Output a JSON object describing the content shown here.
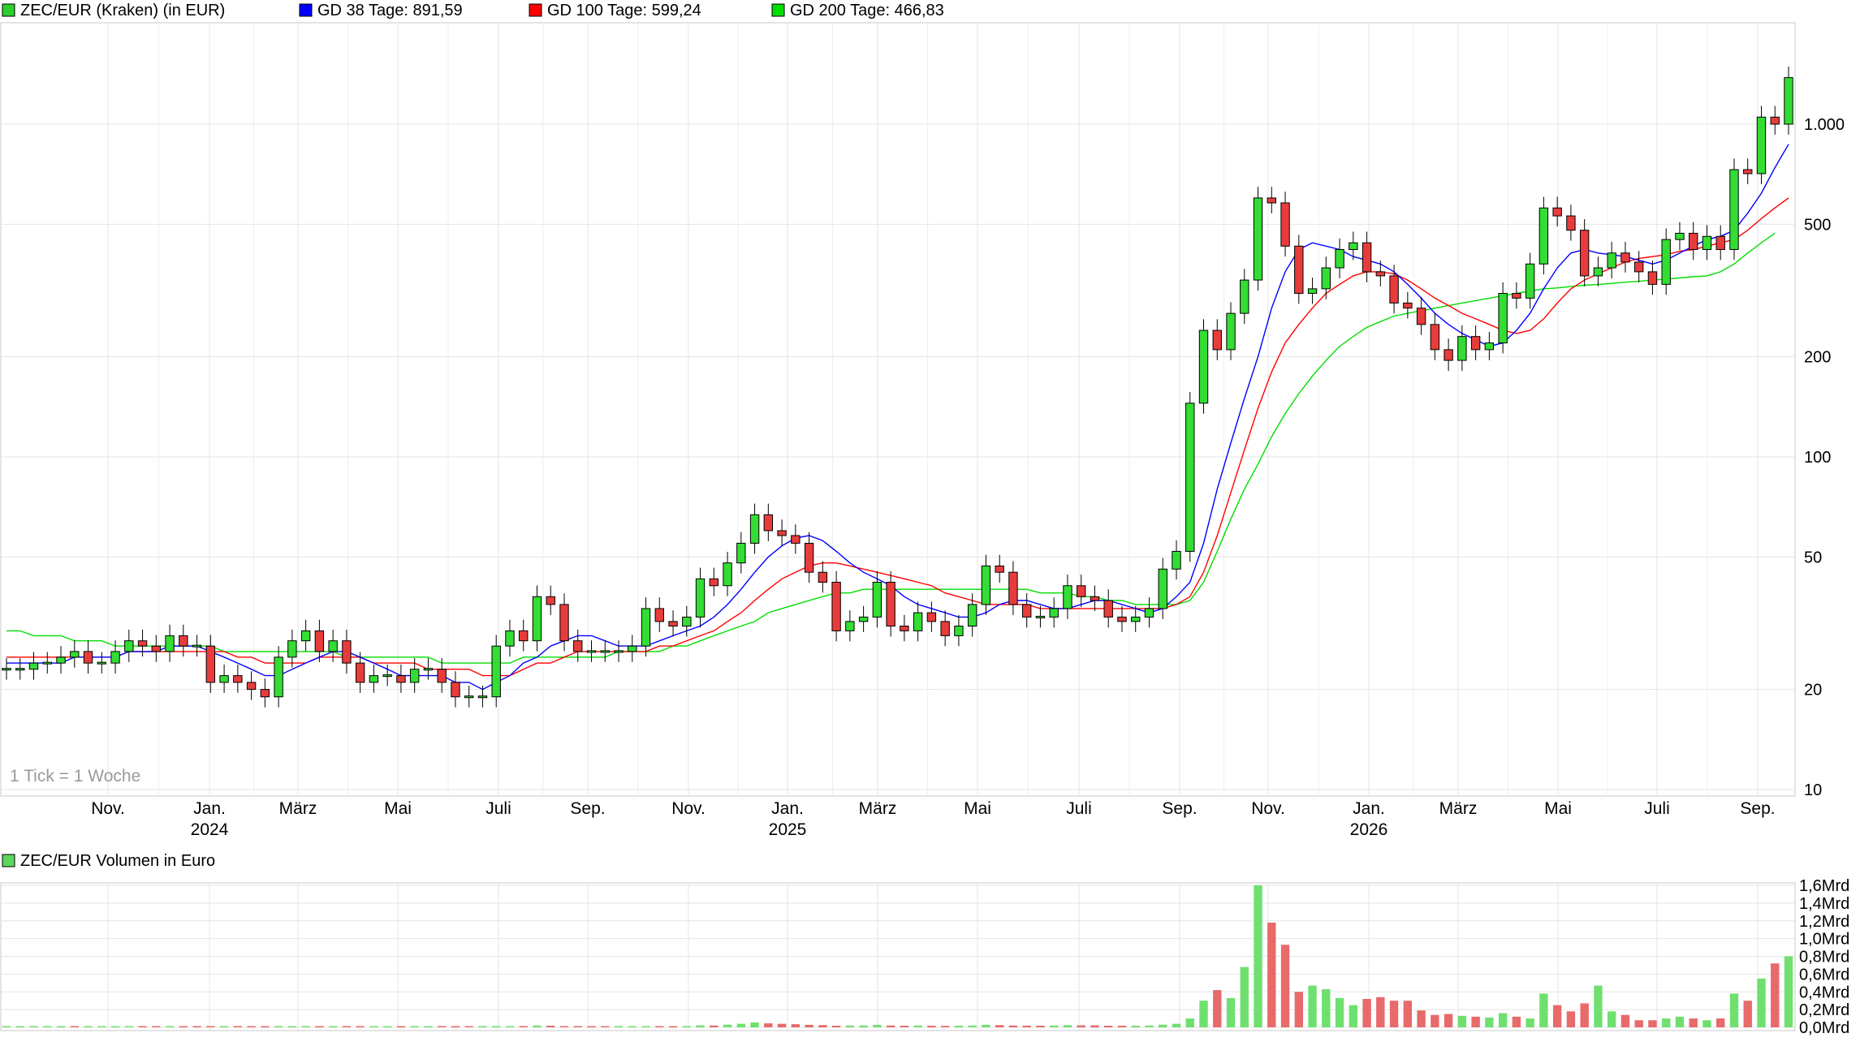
{
  "chart_data": [
    {
      "type": "candlestick",
      "scale": "log",
      "legend": [
        {
          "label": "ZEC/EUR (Kraken) (in EUR)",
          "color": "#2fce2f"
        },
        {
          "label": "GD 38 Tage: 891,59",
          "color": "#0000ff"
        },
        {
          "label": "GD 100 Tage: 599,24",
          "color": "#ff0000"
        },
        {
          "label": "GD 200 Tage: 466,83",
          "color": "#00dd00"
        }
      ],
      "y_ticks": [
        {
          "label": "1.000",
          "value": 1000
        },
        {
          "label": "500",
          "value": 500
        },
        {
          "label": "200",
          "value": 200
        },
        {
          "label": "100",
          "value": 100
        },
        {
          "label": "50",
          "value": 50
        },
        {
          "label": "20",
          "value": 20
        },
        {
          "label": "10",
          "value": 10
        }
      ],
      "x_ticks": [
        {
          "label": "Nov.",
          "year": ""
        },
        {
          "label": "Jan.",
          "year": "2024"
        },
        {
          "label": "März",
          "year": ""
        },
        {
          "label": "Mai",
          "year": ""
        },
        {
          "label": "Juli",
          "year": ""
        },
        {
          "label": "Sep.",
          "year": ""
        },
        {
          "label": "Nov.",
          "year": ""
        },
        {
          "label": "Jan.",
          "year": "2025"
        },
        {
          "label": "März",
          "year": ""
        },
        {
          "label": "Mai",
          "year": ""
        },
        {
          "label": "Juli",
          "year": ""
        },
        {
          "label": "Sep.",
          "year": ""
        },
        {
          "label": "Nov.",
          "year": ""
        },
        {
          "label": "Jan.",
          "year": "2026"
        },
        {
          "label": "März",
          "year": ""
        },
        {
          "label": "Mai",
          "year": ""
        },
        {
          "label": "Juli",
          "year": ""
        },
        {
          "label": "Sep.",
          "year": ""
        }
      ],
      "note": "1 Tick = 1 Woche",
      "ylim": [
        10,
        1800
      ],
      "weekly_close": [
        23,
        23,
        24,
        24,
        25,
        26,
        24,
        24,
        26,
        28,
        27,
        26,
        29,
        27,
        27,
        21,
        22,
        21,
        20,
        19,
        25,
        28,
        30,
        26,
        28,
        24,
        21,
        22,
        22,
        21,
        23,
        23,
        21,
        19,
        19,
        19,
        27,
        30,
        28,
        38,
        36,
        28,
        26,
        26,
        26,
        26,
        27,
        35,
        32,
        31,
        33,
        43,
        41,
        48,
        55,
        67,
        60,
        58,
        55,
        45,
        42,
        30,
        32,
        33,
        42,
        31,
        30,
        34,
        32,
        29,
        31,
        36,
        47,
        45,
        36,
        33,
        33,
        35,
        41,
        38,
        37,
        33,
        32,
        33,
        35,
        46,
        52,
        145,
        240,
        210,
        270,
        340,
        600,
        580,
        430,
        310,
        320,
        370,
        420,
        440,
        360,
        350,
        290,
        280,
        250,
        210,
        195,
        230,
        210,
        220,
        310,
        300,
        380,
        560,
        530,
        480,
        350,
        370,
        410,
        385,
        360,
        330,
        450,
        470,
        420,
        460,
        420,
        730,
        710,
        1050,
        1000,
        1380
      ],
      "weekly_open": [
        23,
        23,
        23,
        24,
        24,
        25,
        26,
        24,
        24,
        26,
        28,
        27,
        26,
        29,
        27,
        27,
        21,
        22,
        21,
        20,
        19,
        25,
        28,
        30,
        26,
        28,
        24,
        21,
        22,
        22,
        21,
        23,
        23,
        21,
        19,
        19,
        19,
        27,
        30,
        28,
        38,
        36,
        28,
        26,
        26,
        26,
        26,
        27,
        35,
        32,
        31,
        33,
        43,
        41,
        48,
        55,
        67,
        60,
        58,
        55,
        45,
        42,
        30,
        32,
        33,
        42,
        31,
        30,
        34,
        32,
        29,
        31,
        36,
        47,
        45,
        36,
        33,
        33,
        35,
        41,
        38,
        37,
        33,
        32,
        33,
        35,
        46,
        52,
        145,
        240,
        210,
        270,
        340,
        600,
        580,
        430,
        310,
        320,
        370,
        420,
        440,
        360,
        350,
        290,
        280,
        250,
        210,
        195,
        230,
        210,
        220,
        310,
        300,
        380,
        560,
        530,
        480,
        350,
        370,
        410,
        385,
        360,
        330,
        450,
        470,
        420,
        460,
        420,
        730,
        710,
        1050,
        1000
      ],
      "ma38": [
        24,
        24,
        24,
        24,
        24,
        25,
        25,
        25,
        25,
        26,
        26,
        26,
        27,
        27,
        27,
        26,
        25,
        24,
        23,
        22,
        22,
        23,
        24,
        25,
        26,
        26,
        25,
        24,
        23,
        22,
        22,
        22,
        22,
        21,
        21,
        20,
        21,
        22,
        24,
        25,
        27,
        28,
        29,
        29,
        28,
        27,
        27,
        27,
        28,
        29,
        30,
        31,
        33,
        36,
        40,
        45,
        50,
        54,
        57,
        58,
        56,
        52,
        48,
        45,
        43,
        41,
        38,
        36,
        35,
        34,
        33,
        33,
        34,
        36,
        37,
        37,
        36,
        35,
        35,
        36,
        37,
        37,
        36,
        35,
        34,
        35,
        38,
        42,
        55,
        80,
        110,
        150,
        200,
        280,
        360,
        420,
        440,
        430,
        420,
        400,
        390,
        380,
        360,
        330,
        300,
        270,
        250,
        235,
        225,
        215,
        220,
        240,
        270,
        320,
        370,
        410,
        420,
        410,
        405,
        400,
        390,
        380,
        390,
        410,
        430,
        450,
        460,
        480,
        540,
        620,
        740,
        870
      ],
      "ma100": [
        25,
        25,
        25,
        25,
        25,
        25,
        25,
        25,
        25,
        26,
        26,
        26,
        26,
        26,
        26,
        26,
        26,
        25,
        25,
        24,
        24,
        24,
        24,
        25,
        25,
        25,
        25,
        24,
        24,
        24,
        24,
        23,
        23,
        23,
        23,
        22,
        22,
        22,
        23,
        24,
        24,
        25,
        26,
        26,
        26,
        26,
        26,
        26,
        27,
        27,
        28,
        29,
        30,
        32,
        34,
        37,
        40,
        43,
        45,
        47,
        48,
        48,
        47,
        46,
        45,
        44,
        43,
        42,
        41,
        39,
        38,
        37,
        36,
        36,
        36,
        36,
        35,
        35,
        35,
        35,
        35,
        35,
        35,
        35,
        35,
        35,
        36,
        38,
        45,
        58,
        78,
        105,
        140,
        180,
        220,
        250,
        280,
        310,
        330,
        350,
        360,
        360,
        355,
        340,
        320,
        300,
        285,
        270,
        260,
        250,
        240,
        235,
        240,
        260,
        290,
        320,
        340,
        355,
        370,
        385,
        395,
        400,
        405,
        415,
        420,
        430,
        440,
        450,
        480,
        520,
        560,
        600
      ],
      "ma200": [
        30,
        30,
        29,
        29,
        29,
        28,
        28,
        28,
        27,
        27,
        27,
        27,
        27,
        27,
        27,
        27,
        26,
        26,
        26,
        26,
        26,
        26,
        26,
        26,
        26,
        25,
        25,
        25,
        25,
        25,
        25,
        25,
        24,
        24,
        24,
        24,
        24,
        24,
        25,
        25,
        25,
        25,
        25,
        25,
        25,
        26,
        26,
        26,
        26,
        27,
        27,
        28,
        29,
        30,
        31,
        32,
        34,
        35,
        36,
        37,
        38,
        39,
        39,
        40,
        40,
        40,
        40,
        40,
        40,
        40,
        40,
        40,
        40,
        40,
        40,
        40,
        39,
        39,
        39,
        38,
        38,
        37,
        37,
        36,
        36,
        36,
        36,
        37,
        42,
        52,
        65,
        80,
        95,
        115,
        135,
        155,
        175,
        195,
        215,
        230,
        245,
        255,
        265,
        270,
        275,
        280,
        285,
        290,
        295,
        300,
        305,
        310,
        315,
        320,
        322,
        325,
        328,
        330,
        332,
        335,
        337,
        340,
        342,
        345,
        348,
        350,
        360,
        380,
        410,
        440,
        470
      ],
      "xlabel": "",
      "ylabel": ""
    },
    {
      "type": "bar",
      "legend": [
        {
          "label": "ZEC/EUR Volumen in Euro",
          "color": "#5cd65c"
        }
      ],
      "unit": "Mrd",
      "y_ticks": [
        {
          "label": "1,6Mrd",
          "value": 1.6
        },
        {
          "label": "1,4Mrd",
          "value": 1.4
        },
        {
          "label": "1,2Mrd",
          "value": 1.2
        },
        {
          "label": "1,0Mrd",
          "value": 1.0
        },
        {
          "label": "0,8Mrd",
          "value": 0.8
        },
        {
          "label": "0,6Mrd",
          "value": 0.6
        },
        {
          "label": "0,4Mrd",
          "value": 0.4
        },
        {
          "label": "0,2Mrd",
          "value": 0.2
        },
        {
          "label": "0,0Mrd",
          "value": 0.0
        }
      ],
      "ylim": [
        0,
        1.6
      ],
      "values": [
        0.005,
        0.005,
        0.005,
        0.006,
        0.006,
        0.008,
        0.007,
        0.006,
        0.007,
        0.012,
        0.01,
        0.009,
        0.012,
        0.01,
        0.009,
        0.01,
        0.008,
        0.008,
        0.007,
        0.007,
        0.01,
        0.012,
        0.011,
        0.009,
        0.01,
        0.009,
        0.008,
        0.008,
        0.007,
        0.007,
        0.008,
        0.008,
        0.007,
        0.007,
        0.007,
        0.007,
        0.012,
        0.014,
        0.012,
        0.02,
        0.018,
        0.012,
        0.01,
        0.009,
        0.009,
        0.009,
        0.009,
        0.013,
        0.013,
        0.012,
        0.014,
        0.022,
        0.02,
        0.03,
        0.04,
        0.055,
        0.045,
        0.04,
        0.035,
        0.028,
        0.025,
        0.018,
        0.02,
        0.02,
        0.028,
        0.02,
        0.018,
        0.02,
        0.018,
        0.016,
        0.018,
        0.02,
        0.028,
        0.025,
        0.02,
        0.018,
        0.018,
        0.02,
        0.025,
        0.022,
        0.022,
        0.018,
        0.018,
        0.018,
        0.02,
        0.03,
        0.04,
        0.1,
        0.3,
        0.42,
        0.33,
        0.68,
        1.6,
        1.18,
        0.93,
        0.4,
        0.47,
        0.43,
        0.33,
        0.25,
        0.32,
        0.34,
        0.3,
        0.3,
        0.19,
        0.14,
        0.15,
        0.13,
        0.12,
        0.11,
        0.16,
        0.12,
        0.1,
        0.38,
        0.25,
        0.18,
        0.27,
        0.47,
        0.18,
        0.14,
        0.08,
        0.08,
        0.1,
        0.12,
        0.1,
        0.08,
        0.1,
        0.38,
        0.3,
        0.55,
        0.72,
        0.8
      ],
      "up": [
        true,
        true,
        true,
        true,
        true,
        false,
        true,
        true,
        true,
        true,
        false,
        false,
        true,
        false,
        false,
        false,
        true,
        false,
        false,
        false,
        true,
        true,
        true,
        false,
        true,
        false,
        false,
        true,
        true,
        false,
        true,
        true,
        false,
        false,
        false,
        true,
        true,
        true,
        false,
        true,
        false,
        false,
        false,
        false,
        false,
        true,
        true,
        true,
        false,
        false,
        true,
        true,
        false,
        true,
        true,
        true,
        false,
        false,
        false,
        false,
        false,
        false,
        true,
        true,
        true,
        false,
        false,
        true,
        false,
        false,
        true,
        true,
        true,
        false,
        false,
        false,
        false,
        true,
        true,
        false,
        false,
        false,
        false,
        true,
        true,
        true,
        true,
        true,
        true,
        false,
        true,
        true,
        true,
        false,
        false,
        false,
        true,
        true,
        true,
        true,
        false,
        false,
        false,
        false,
        false,
        false,
        false,
        true,
        false,
        true,
        true,
        false,
        true,
        true,
        false,
        false,
        false,
        true,
        true,
        false,
        false,
        false,
        true,
        true,
        false,
        true,
        false,
        true,
        false,
        true,
        false,
        true
      ]
    }
  ]
}
